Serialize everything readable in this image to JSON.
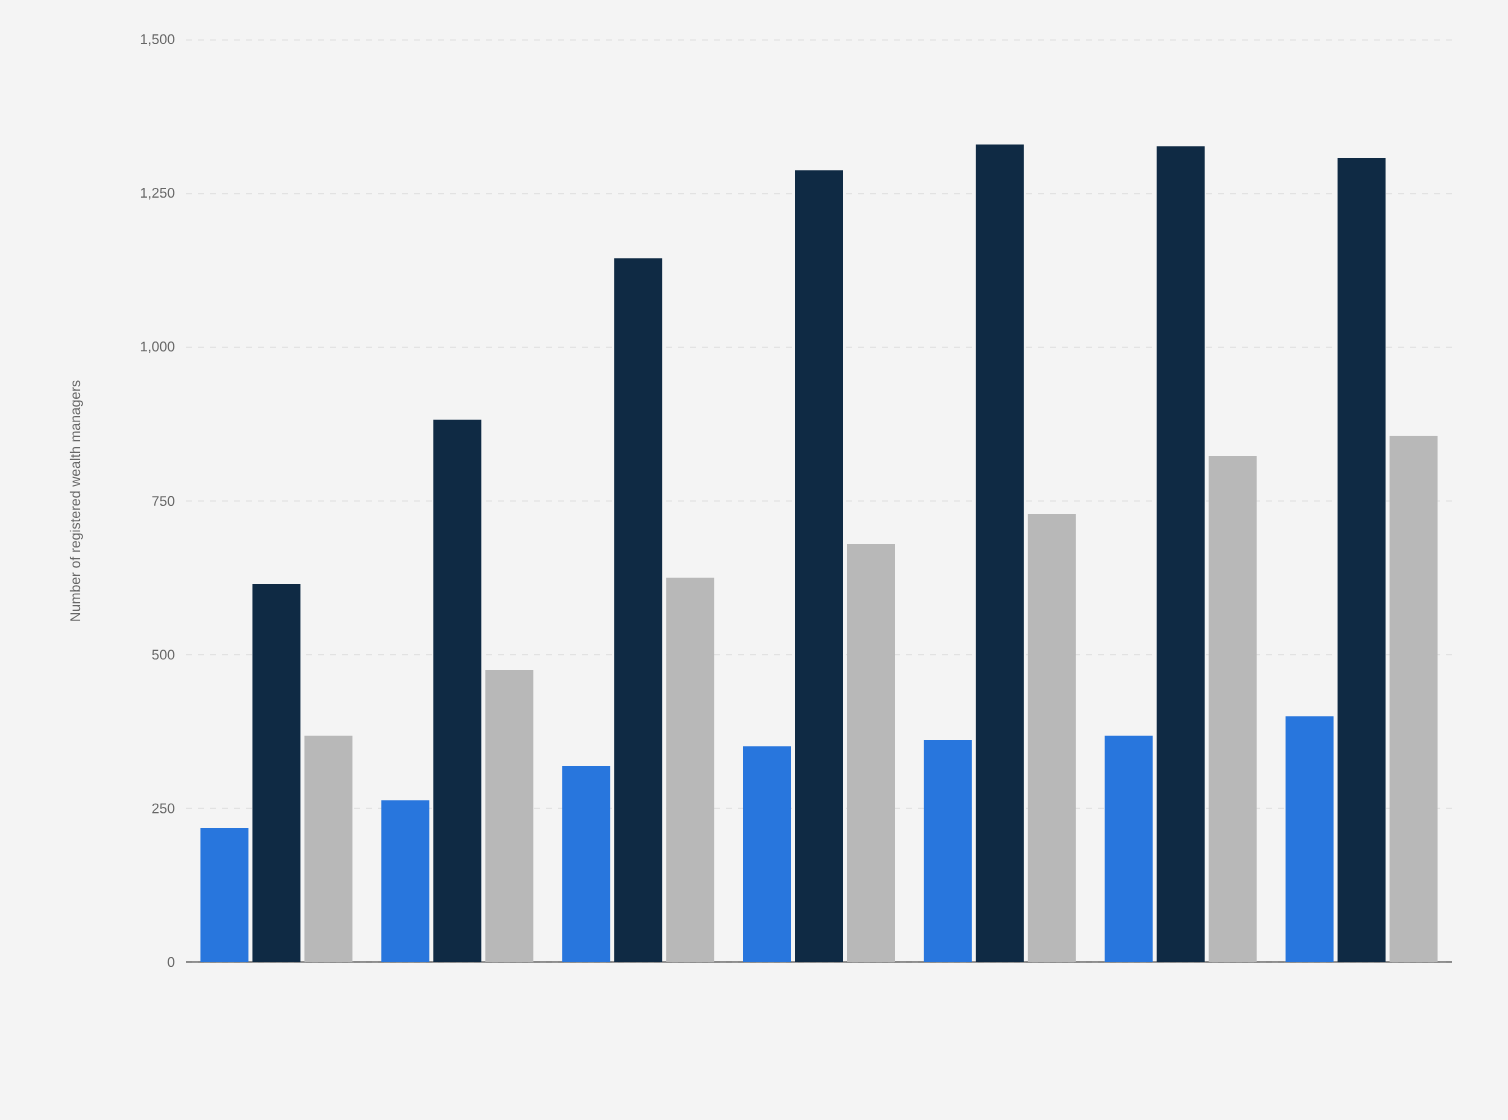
{
  "chart_data": {
    "type": "bar",
    "ylabel": "Number of registered wealth managers",
    "categories": [
      null,
      null,
      null,
      null,
      null,
      null,
      null
    ],
    "series": [
      {
        "color": "#2876dd",
        "values": [
          218,
          263,
          319,
          351,
          361,
          368,
          400
        ]
      },
      {
        "color": "#0f2a44",
        "values": [
          615,
          882,
          1145,
          1288,
          1330,
          1327,
          1308
        ]
      },
      {
        "color": "#b8b8b8",
        "values": [
          368,
          475,
          625,
          680,
          729,
          823,
          856
        ]
      }
    ],
    "ylim": [
      0,
      1500
    ],
    "yticks": [
      0,
      {
        "value": 250,
        "label": "250"
      },
      {
        "value": 500,
        "label": "500"
      },
      {
        "value": 750,
        "label": "750"
      },
      {
        "value": 1000,
        "label": "1,000"
      },
      {
        "value": 1250,
        "label": "1,250"
      },
      {
        "value": 1500,
        "label": "1,500"
      }
    ],
    "grid": "y"
  }
}
